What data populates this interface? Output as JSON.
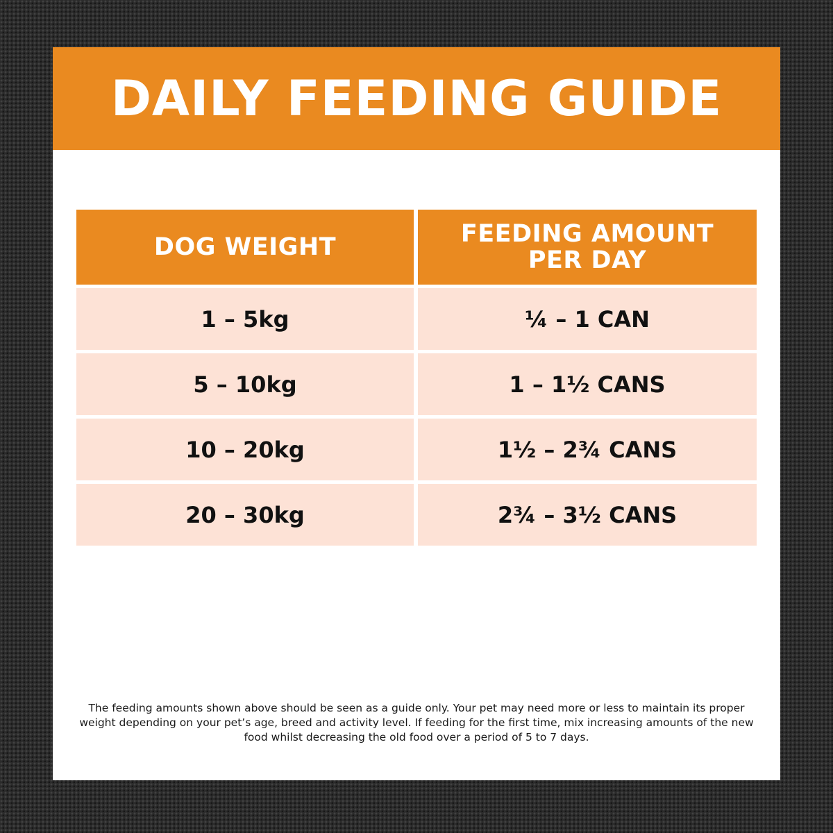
{
  "banner": {
    "title": "DAILY FEEDING GUIDE"
  },
  "table": {
    "headers": {
      "weight": "DOG WEIGHT",
      "amount": "FEEDING AMOUNT PER DAY"
    },
    "rows": [
      {
        "weight": "1 – 5kg",
        "amount": "¼ – 1 CAN"
      },
      {
        "weight": "5 – 10kg",
        "amount": "1 – 1½ CANS"
      },
      {
        "weight": "10 – 20kg",
        "amount": "1½ – 2¾ CANS"
      },
      {
        "weight": "20 – 30kg",
        "amount": "2¾ – 3½ CANS"
      }
    ]
  },
  "disclaimer": "The feeding amounts shown above should be seen as a guide only. Your pet may need more or less to maintain its proper weight depending on your pet’s age, breed and activity level. If feeding for the first time, mix increasing amounts of the new food whilst decreasing the old food over a period of 5 to 7 days.",
  "colors": {
    "accent": "#ea8a20",
    "row_fill": "#fde2d6",
    "background": "#2b2b2b"
  }
}
